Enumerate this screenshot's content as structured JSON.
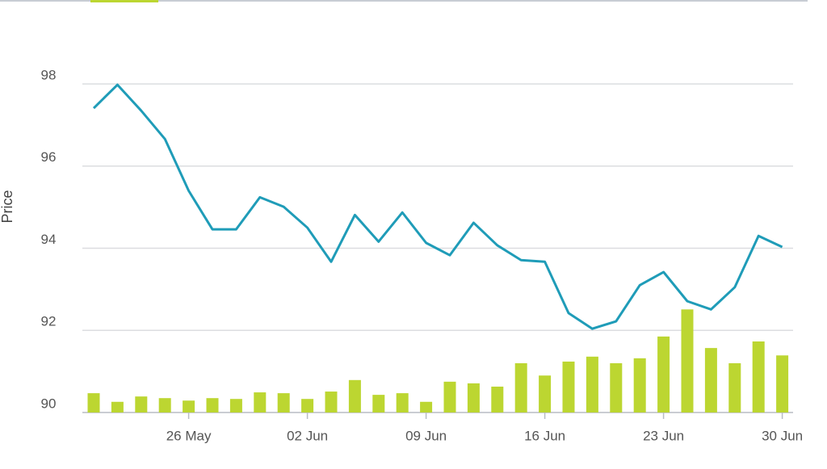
{
  "chart_data": {
    "type": "line",
    "y_label": "Price",
    "categories": [
      null,
      null,
      null,
      null,
      "26 May",
      null,
      null,
      null,
      null,
      "02 Jun",
      null,
      null,
      null,
      null,
      "09 Jun",
      null,
      null,
      null,
      null,
      "16 Jun",
      null,
      null,
      null,
      null,
      "23 Jun",
      null,
      null,
      null,
      null,
      "30 Jun"
    ],
    "series": [
      {
        "type": "line",
        "color": "#1f9cb8",
        "values": [
          97.41,
          97.98,
          97.35,
          96.66,
          95.4,
          94.46,
          94.46,
          95.24,
          95.01,
          94.5,
          93.67,
          94.81,
          94.16,
          94.87,
          94.13,
          93.83,
          94.62,
          94.07,
          93.71,
          93.67,
          92.42,
          92.04,
          92.22,
          93.1,
          93.42,
          92.71,
          92.51,
          93.05,
          94.3,
          94.03
        ]
      },
      {
        "type": "bar",
        "color": "#bcd631",
        "values": [
          90.47,
          90.26,
          90.39,
          90.35,
          90.29,
          90.35,
          90.33,
          90.49,
          90.47,
          90.33,
          90.51,
          90.79,
          90.43,
          90.47,
          90.26,
          90.75,
          90.71,
          90.63,
          91.2,
          90.9,
          91.24,
          91.36,
          91.2,
          91.32,
          91.85,
          92.51,
          91.57,
          91.2,
          91.73,
          91.39
        ]
      }
    ],
    "ylim": [
      90,
      98
    ],
    "yticks": [
      90,
      92,
      94,
      96,
      98
    ],
    "grid": true
  }
}
